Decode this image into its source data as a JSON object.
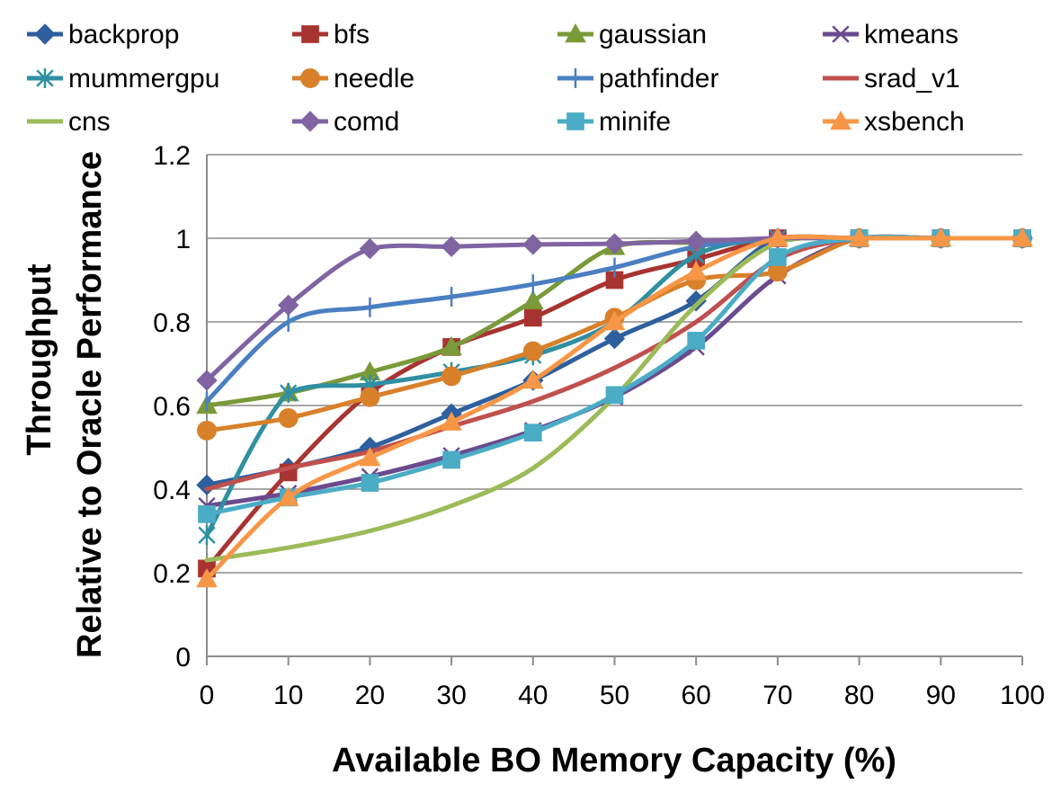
{
  "chart_data": {
    "type": "line",
    "title": "",
    "xlabel": "Available BO Memory Capacity (%)",
    "ylabel_line1": "Throughput",
    "ylabel_line2": "Relative to Oracle Performance",
    "x": [
      0,
      10,
      20,
      30,
      40,
      50,
      60,
      70,
      80,
      90,
      100
    ],
    "x_ticks": [
      "0",
      "10",
      "20",
      "30",
      "40",
      "50",
      "60",
      "70",
      "80",
      "90",
      "100"
    ],
    "y_ticks": [
      "0",
      "0.2",
      "0.4",
      "0.6",
      "0.8",
      "1",
      "1.2"
    ],
    "xlim": [
      0,
      100
    ],
    "ylim": [
      0,
      1.2
    ],
    "grid": "horizontal",
    "legend_position": "top",
    "series": [
      {
        "name": "backprop",
        "color": "#2e5f9e",
        "marker": "diamond",
        "values": [
          0.41,
          0.45,
          0.5,
          0.58,
          0.66,
          0.76,
          0.85,
          1.0,
          1.0,
          1.0,
          1.0
        ]
      },
      {
        "name": "bfs",
        "color": "#a83432",
        "marker": "square",
        "values": [
          0.21,
          0.44,
          0.63,
          0.74,
          0.81,
          0.9,
          0.95,
          1.0,
          1.0,
          1.0,
          1.0
        ]
      },
      {
        "name": "gaussian",
        "color": "#7a9a3a",
        "marker": "triangle",
        "values": [
          0.6,
          0.63,
          0.68,
          0.74,
          0.85,
          0.98,
          0.99,
          1.0,
          1.0,
          1.0,
          1.0
        ]
      },
      {
        "name": "kmeans",
        "color": "#6b4a8e",
        "marker": "x",
        "values": [
          0.36,
          0.39,
          0.43,
          0.48,
          0.54,
          0.62,
          0.74,
          0.91,
          1.0,
          1.0,
          1.0
        ]
      },
      {
        "name": "mummergpu",
        "color": "#2f8fa3",
        "marker": "star",
        "values": [
          0.29,
          0.63,
          0.65,
          0.68,
          0.72,
          0.8,
          0.96,
          1.0,
          1.0,
          1.0,
          1.0
        ]
      },
      {
        "name": "needle",
        "color": "#d9802b",
        "marker": "circle",
        "values": [
          0.54,
          0.57,
          0.62,
          0.67,
          0.73,
          0.81,
          0.9,
          0.92,
          1.0,
          1.0,
          1.0
        ]
      },
      {
        "name": "pathfinder",
        "color": "#4a7fc1",
        "marker": "plus",
        "values": [
          0.61,
          0.8,
          0.835,
          0.86,
          0.89,
          0.93,
          0.98,
          1.0,
          1.0,
          1.0,
          1.0
        ]
      },
      {
        "name": "srad_v1",
        "color": "#c0504d",
        "marker": "none",
        "values": [
          0.4,
          0.45,
          0.49,
          0.55,
          0.61,
          0.69,
          0.8,
          0.95,
          1.0,
          1.0,
          1.0
        ]
      },
      {
        "name": "cns",
        "color": "#9bbb59",
        "marker": "none",
        "values": [
          0.23,
          0.26,
          0.3,
          0.36,
          0.45,
          0.62,
          0.84,
          0.99,
          1.0,
          1.0,
          1.0
        ]
      },
      {
        "name": "comd",
        "color": "#8064a2",
        "marker": "diamond",
        "values": [
          0.66,
          0.84,
          0.975,
          0.98,
          0.985,
          0.987,
          0.993,
          1.0,
          1.0,
          1.0,
          1.0
        ]
      },
      {
        "name": "minife",
        "color": "#4bacc6",
        "marker": "square",
        "values": [
          0.34,
          0.38,
          0.415,
          0.47,
          0.535,
          0.625,
          0.755,
          0.955,
          1.0,
          1.0,
          1.0
        ]
      },
      {
        "name": "xsbench",
        "color": "#f79646",
        "marker": "triangle",
        "values": [
          0.185,
          0.38,
          0.475,
          0.56,
          0.66,
          0.8,
          0.92,
          1.0,
          1.0,
          1.0,
          1.0
        ]
      }
    ]
  }
}
